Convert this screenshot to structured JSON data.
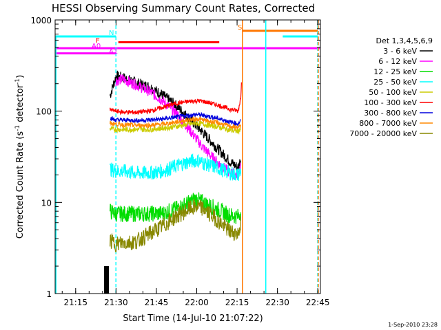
{
  "chart_data": {
    "type": "line",
    "title": "HESSI Observing Summary Count Rates, Corrected",
    "xlabel": "Start Time (14-Jul-10 21:07:22)",
    "ylabel_main": "Corrected Count Rate (s",
    "ylabel_sup1": "-1",
    "ylabel_mid": " detector",
    "ylabel_sup2": "-1",
    "ylabel_end": ")",
    "footer": "1-Sep-2010 23:28",
    "yscale": "log",
    "ylim": [
      1,
      1000
    ],
    "xlim_minutes": [
      0,
      98.6
    ],
    "x_ticks": [
      {
        "label": "21:15",
        "min": 7.63
      },
      {
        "label": "21:30",
        "min": 22.63
      },
      {
        "label": "21:45",
        "min": 37.63
      },
      {
        "label": "22:00",
        "min": 52.63
      },
      {
        "label": "22:15",
        "min": 67.63
      },
      {
        "label": "22:30",
        "min": 82.63
      },
      {
        "label": "22:45",
        "min": 97.63
      }
    ],
    "y_ticks": [
      {
        "label": "1",
        "value": 1
      },
      {
        "label": "10",
        "value": 10
      },
      {
        "label": "100",
        "value": 100
      },
      {
        "label": "1000",
        "value": 1000
      }
    ],
    "legend_title": "Det 1,3,4,5,6,9",
    "legend_placement": "right",
    "series": [
      {
        "name": "3 - 6 keV",
        "color": "#000000",
        "points": [
          [
            20.4,
            148
          ],
          [
            22.6,
            240
          ],
          [
            25,
            235
          ],
          [
            30,
            205
          ],
          [
            35,
            185
          ],
          [
            40,
            150
          ],
          [
            45,
            115
          ],
          [
            50,
            82
          ],
          [
            55,
            58
          ],
          [
            60,
            40
          ],
          [
            65,
            28
          ],
          [
            68,
            24
          ],
          [
            69,
            30
          ]
        ]
      },
      {
        "name": "6 - 12 keV",
        "color": "#ff00ff",
        "points": [
          [
            22.6,
            215
          ],
          [
            25,
            225
          ],
          [
            30,
            195
          ],
          [
            35,
            165
          ],
          [
            40,
            130
          ],
          [
            45,
            95
          ],
          [
            50,
            62
          ],
          [
            55,
            40
          ],
          [
            60,
            28
          ],
          [
            65,
            21
          ],
          [
            68,
            20
          ],
          [
            69,
            26
          ]
        ]
      },
      {
        "name": "12 - 25 keV",
        "color": "#00dd00",
        "points": [
          [
            20.4,
            8
          ],
          [
            22.6,
            7.5
          ],
          [
            25,
            7.5
          ],
          [
            30,
            7.5
          ],
          [
            35,
            7.5
          ],
          [
            40,
            7.6
          ],
          [
            45,
            8.5
          ],
          [
            50,
            10
          ],
          [
            52,
            11
          ],
          [
            55,
            10
          ],
          [
            60,
            8.5
          ],
          [
            65,
            7.2
          ],
          [
            68,
            7
          ],
          [
            69,
            8
          ]
        ]
      },
      {
        "name": "25 - 50 keV",
        "color": "#00ffff",
        "points": [
          [
            20.4,
            23
          ],
          [
            22.6,
            22
          ],
          [
            25,
            22
          ],
          [
            30,
            21
          ],
          [
            35,
            21
          ],
          [
            40,
            22
          ],
          [
            45,
            25
          ],
          [
            50,
            28
          ],
          [
            53,
            29
          ],
          [
            55,
            27
          ],
          [
            60,
            24
          ],
          [
            65,
            21
          ],
          [
            68,
            20
          ],
          [
            69,
            22
          ]
        ]
      },
      {
        "name": "50 - 100 keV",
        "color": "#cccc00",
        "points": [
          [
            20.4,
            64
          ],
          [
            22.6,
            63
          ],
          [
            25,
            63
          ],
          [
            30,
            63
          ],
          [
            35,
            63
          ],
          [
            40,
            65
          ],
          [
            45,
            68
          ],
          [
            50,
            72
          ],
          [
            53,
            74
          ],
          [
            55,
            72
          ],
          [
            60,
            68
          ],
          [
            65,
            62
          ],
          [
            68,
            60
          ],
          [
            69,
            65
          ]
        ]
      },
      {
        "name": "100 - 300 keV",
        "color": "#ff0000",
        "points": [
          [
            20.4,
            103
          ],
          [
            22.6,
            100
          ],
          [
            25,
            98
          ],
          [
            30,
            97
          ],
          [
            35,
            100
          ],
          [
            40,
            110
          ],
          [
            45,
            122
          ],
          [
            50,
            128
          ],
          [
            53,
            130
          ],
          [
            55,
            128
          ],
          [
            60,
            118
          ],
          [
            65,
            105
          ],
          [
            68,
            100
          ],
          [
            69,
            140
          ],
          [
            69.3,
            240
          ]
        ]
      },
      {
        "name": "300 - 800 keV",
        "color": "#0000dd",
        "points": [
          [
            20.4,
            84
          ],
          [
            22.6,
            80
          ],
          [
            25,
            80
          ],
          [
            30,
            79
          ],
          [
            35,
            80
          ],
          [
            40,
            82
          ],
          [
            45,
            86
          ],
          [
            50,
            90
          ],
          [
            53,
            92
          ],
          [
            55,
            90
          ],
          [
            60,
            84
          ],
          [
            65,
            76
          ],
          [
            68,
            73
          ],
          [
            69,
            78
          ]
        ]
      },
      {
        "name": "800 - 7000 keV",
        "color": "#ff8800",
        "points": [
          [
            20.4,
            74
          ],
          [
            22.6,
            72
          ],
          [
            25,
            71
          ],
          [
            30,
            70
          ],
          [
            35,
            70
          ],
          [
            40,
            72
          ],
          [
            45,
            76
          ],
          [
            50,
            80
          ],
          [
            53,
            82
          ],
          [
            55,
            80
          ],
          [
            60,
            75
          ],
          [
            65,
            68
          ],
          [
            68,
            66
          ],
          [
            69,
            70
          ]
        ]
      },
      {
        "name": "7000 - 20000 keV",
        "color": "#888800",
        "points": [
          [
            20.4,
            3.8
          ],
          [
            22.6,
            3.5
          ],
          [
            25,
            3.6
          ],
          [
            30,
            3.7
          ],
          [
            35,
            4.5
          ],
          [
            40,
            5.5
          ],
          [
            45,
            7
          ],
          [
            50,
            8.5
          ],
          [
            53,
            9
          ],
          [
            55,
            8.5
          ],
          [
            60,
            6.5
          ],
          [
            65,
            4.8
          ],
          [
            68,
            4.5
          ],
          [
            69,
            6
          ]
        ]
      }
    ],
    "flags": [
      {
        "label": "N",
        "color": "#00ffff",
        "segments": [
          [
            0,
            22.6
          ],
          [
            84.6,
            97.6
          ]
        ],
        "value": 660
      },
      {
        "label": "F",
        "color": "#ff0000",
        "segments": [
          [
            23.5,
            61
          ]
        ],
        "value": 570
      },
      {
        "label": "A0",
        "color": "#ff00ff",
        "segments": [
          [
            0,
            23.2
          ],
          [
            23.2,
            98.4
          ]
        ],
        "value": 490
      },
      {
        "label": "A1",
        "color": "#ff00ff",
        "segments": [
          [
            0,
            22.6
          ]
        ],
        "value": 430
      },
      {
        "label": "S",
        "color": "#ff7700",
        "segments": [
          [
            69.6,
            97.6
          ]
        ],
        "value": 760
      }
    ],
    "vertical_markers": [
      {
        "min": 22.6,
        "color": "#00ffff",
        "dashed": true
      },
      {
        "min": 69.6,
        "color": "#ff7700",
        "dashed": false
      },
      {
        "min": 78.3,
        "color": "#00ffff",
        "dashed": false
      },
      {
        "min": 97.6,
        "color": "#00ffff",
        "dashed": true
      },
      {
        "min": 97.8,
        "color": "#ff7700",
        "dashed": true
      }
    ]
  }
}
